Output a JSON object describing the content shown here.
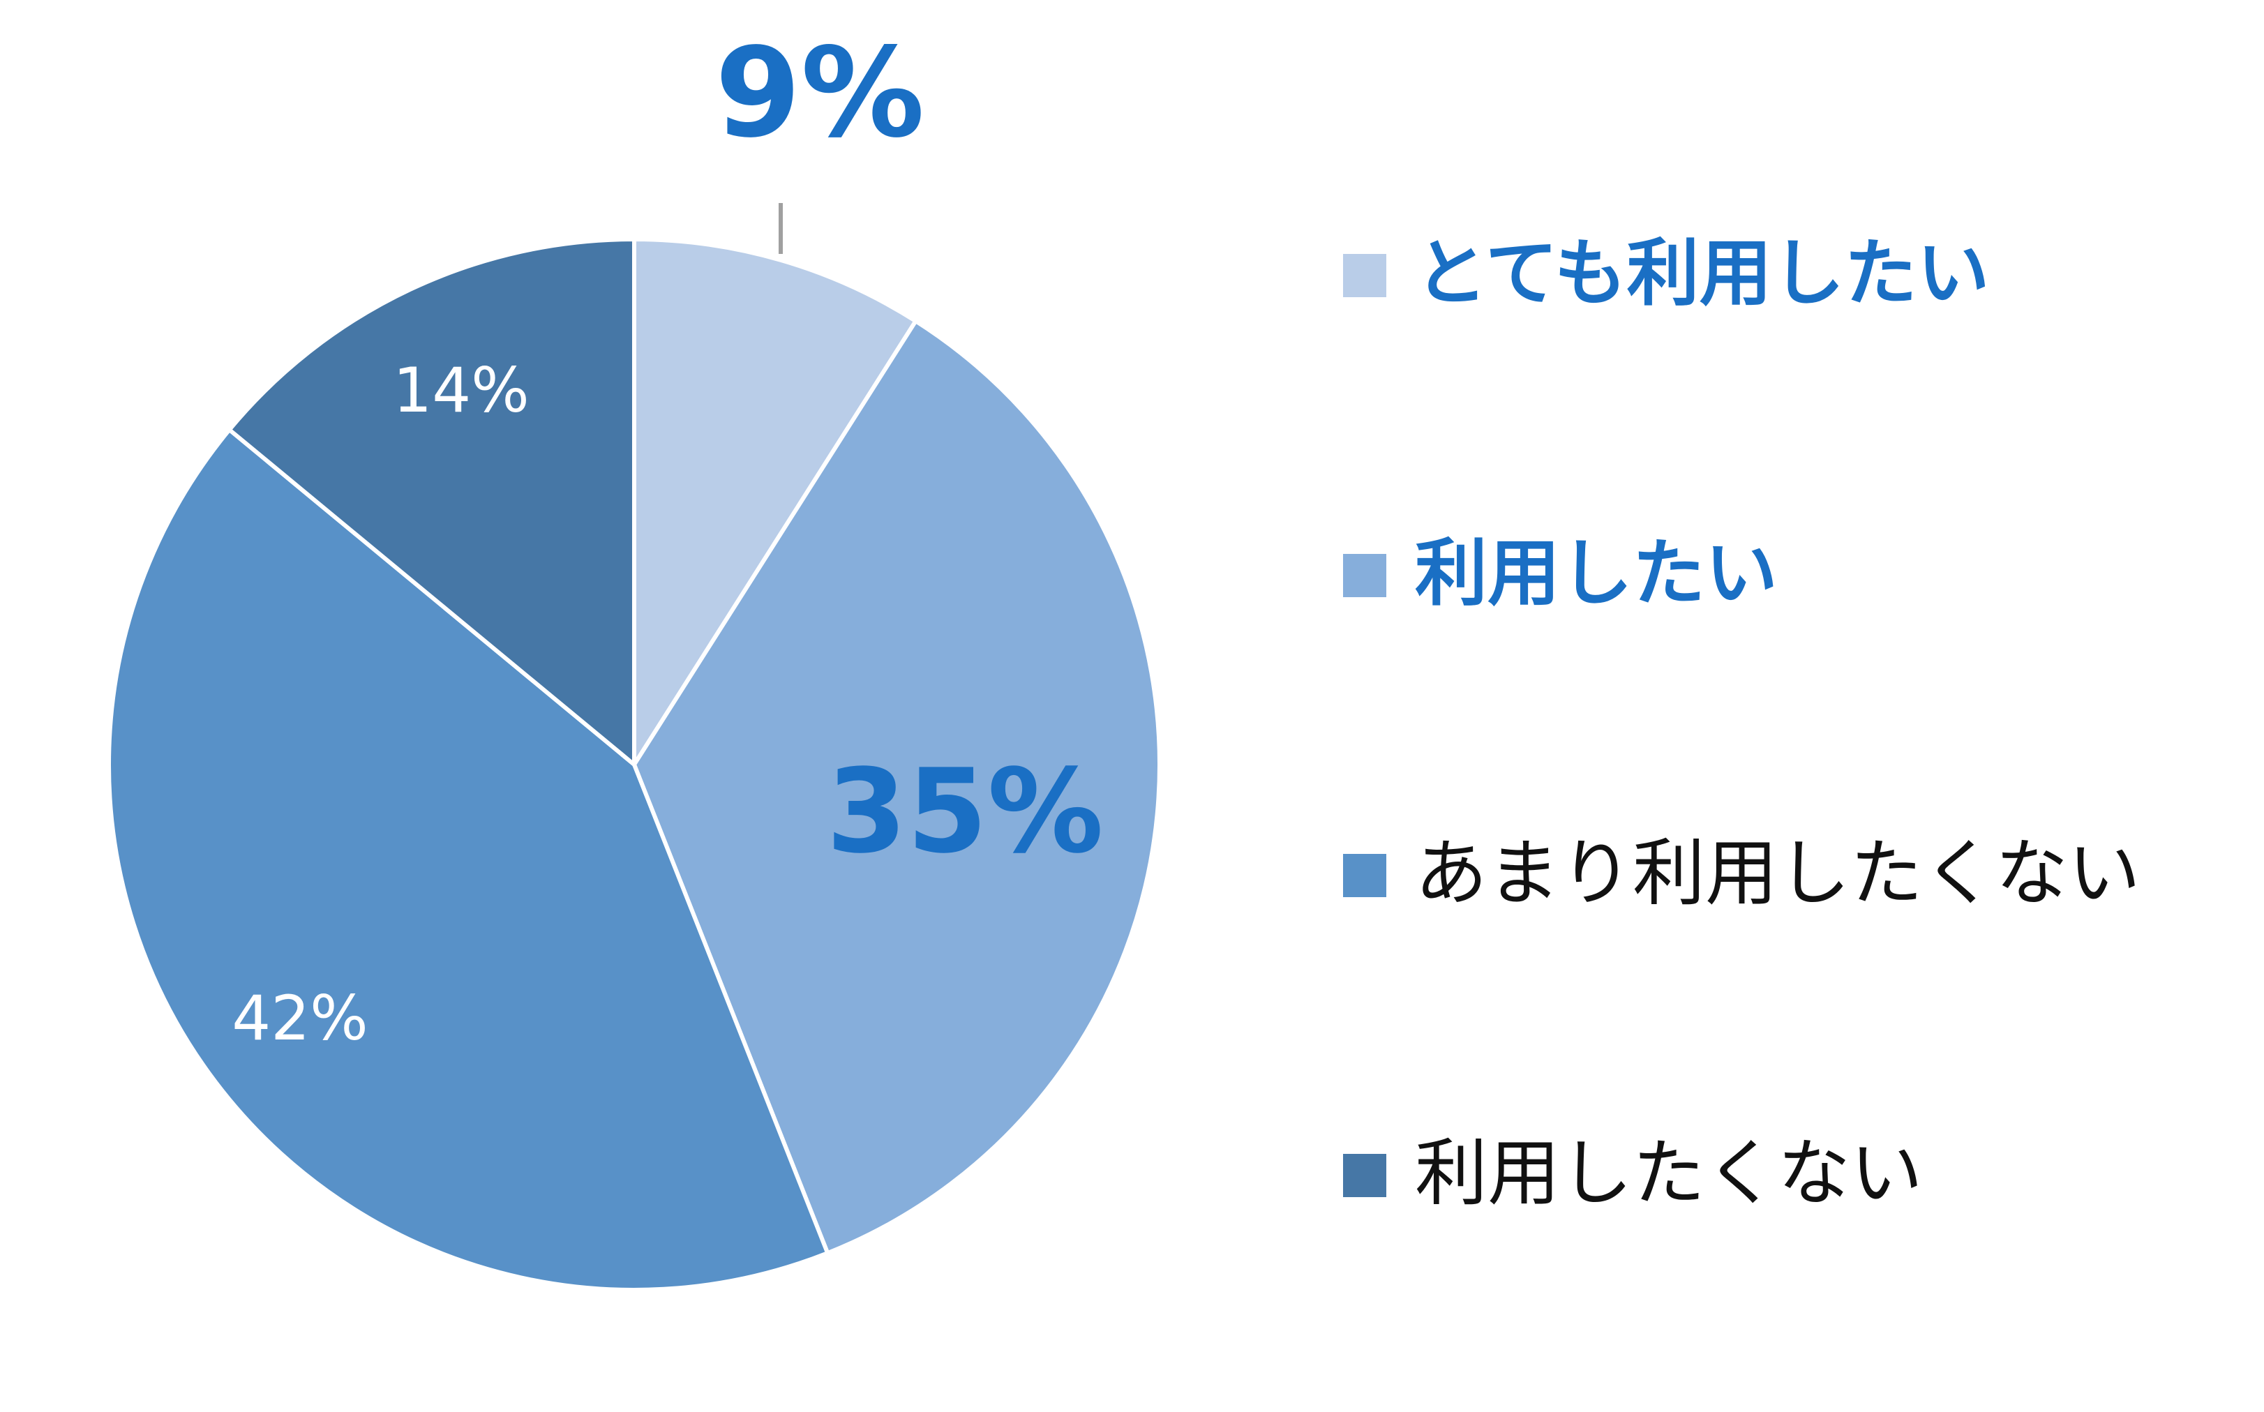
{
  "chart_data": {
    "type": "pie",
    "categories": [
      "とても利用したい",
      "利用したい",
      "あまり利用したくない",
      "利用したくない"
    ],
    "values": [
      9,
      35,
      42,
      14
    ],
    "value_labels": [
      "9%",
      "35%",
      "42%",
      "14%"
    ],
    "colors": [
      "#b9cde8",
      "#86aedb",
      "#5891c8",
      "#4677a6"
    ]
  }
}
